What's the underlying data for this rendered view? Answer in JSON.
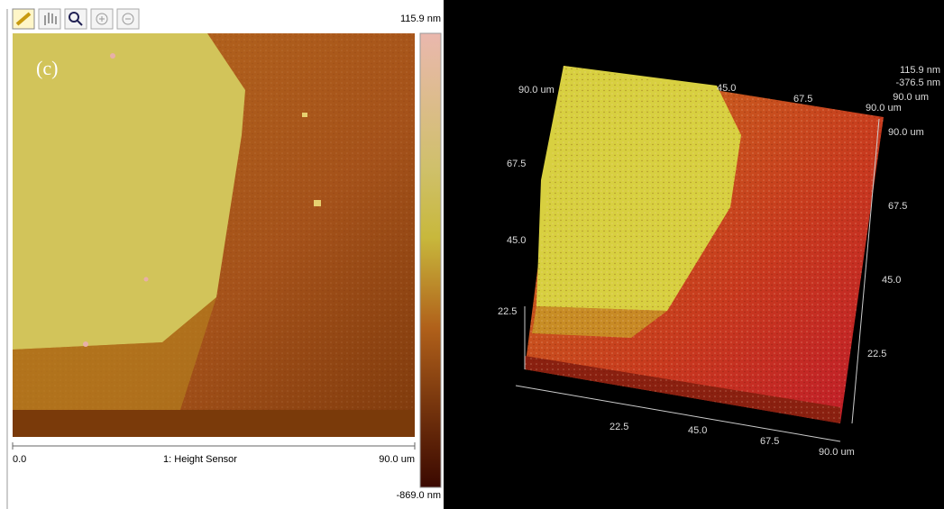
{
  "left_panel": {
    "label": "(c)",
    "colorbar": {
      "max": "115.9 nm",
      "min": "-869.0 nm"
    },
    "scale_bar": {
      "start": "0.0",
      "title": "1: Height Sensor",
      "end": "90.0 um"
    }
  },
  "right_panel": {
    "z_range": {
      "max": "115.9 nm",
      "min": "-376.5 nm",
      "extent": "90.0 um"
    },
    "top_axis": [
      "90.0 um",
      "45.0",
      "67.5",
      "90.0 um"
    ],
    "left_axis": [
      "67.5",
      "45.0",
      "22.5"
    ],
    "right_axis": [
      "90.0 um",
      "67.5",
      "45.0",
      "22.5"
    ],
    "bottom_axis": [
      "22.5",
      "45.0",
      "67.5",
      "90.0 um"
    ]
  }
}
